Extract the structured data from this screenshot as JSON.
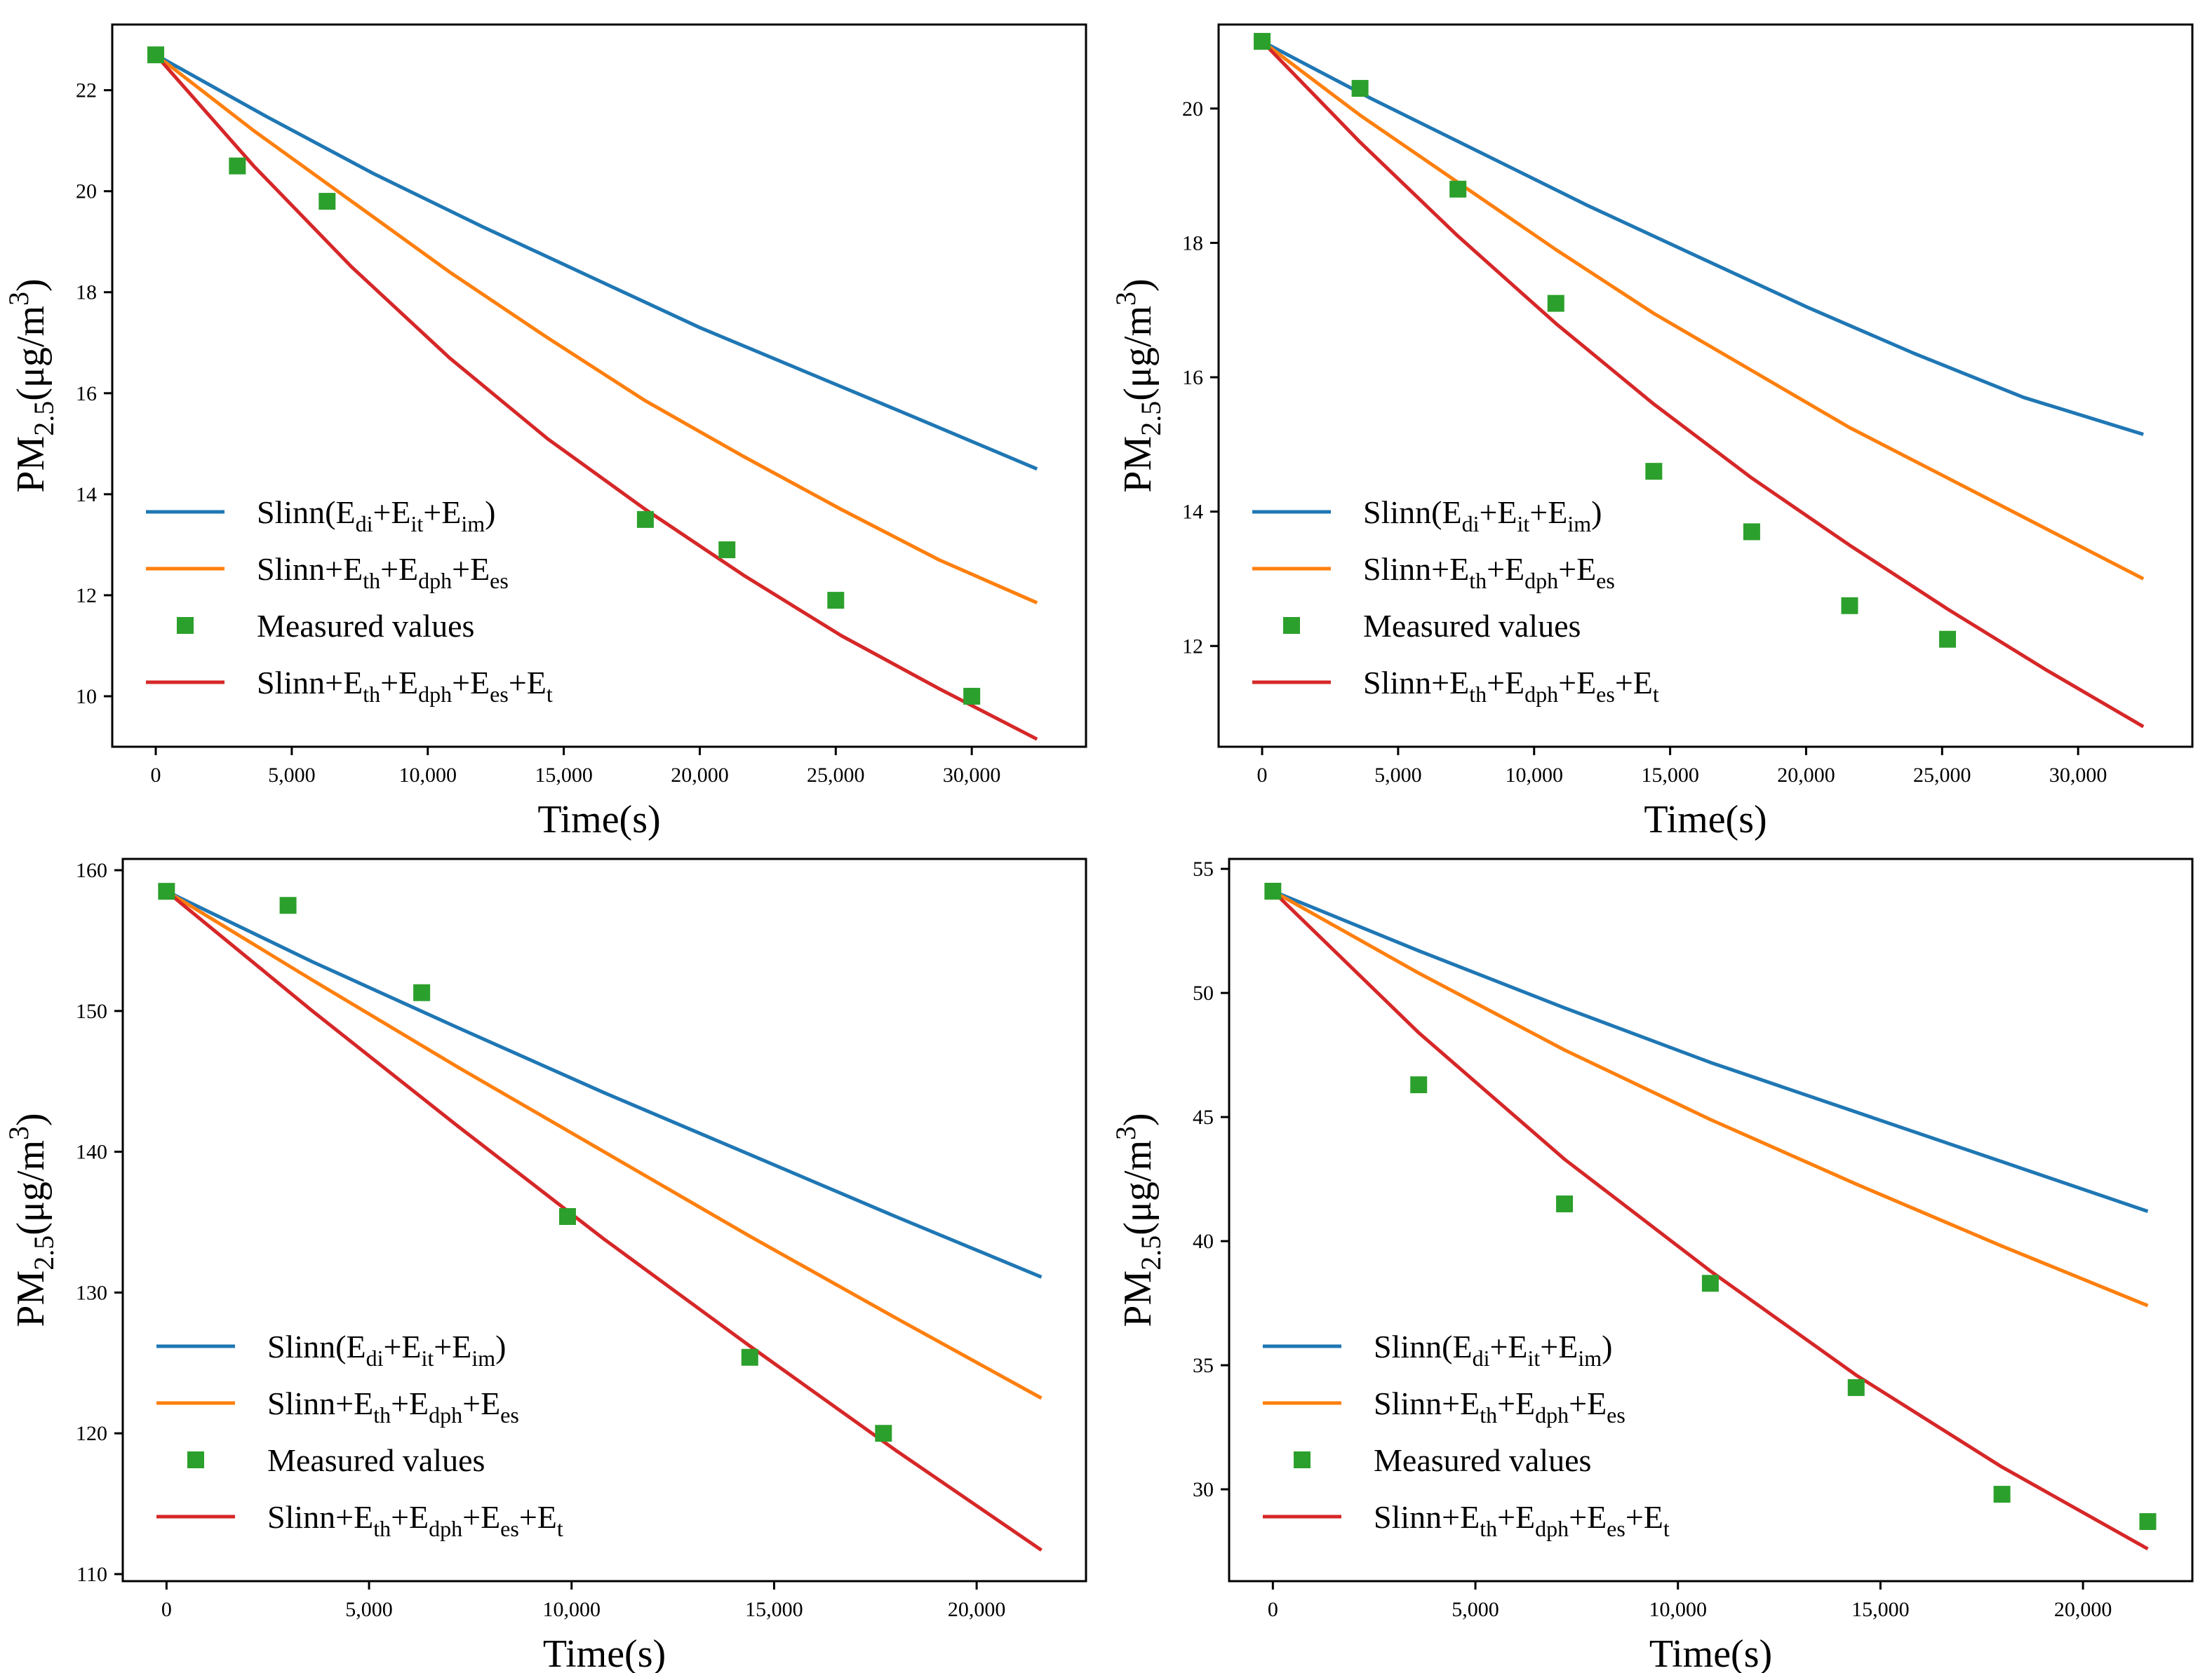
{
  "colors": {
    "blue": "#1f77b4",
    "orange": "#ff7f0e",
    "green": "#2ca02c",
    "red": "#d62728"
  },
  "legend": [
    {
      "base": "Slinn(E",
      "parts": [
        [
          "sub",
          "di"
        ],
        [
          "txt",
          "+E"
        ],
        [
          "sub",
          "it"
        ],
        [
          "txt",
          "+E"
        ],
        [
          "sub",
          "im"
        ],
        [
          "txt",
          ")"
        ]
      ],
      "color_key": "blue",
      "kind": "line"
    },
    {
      "base": "Slinn+E",
      "parts": [
        [
          "sub",
          "th"
        ],
        [
          "txt",
          "+E"
        ],
        [
          "sub",
          "dph"
        ],
        [
          "txt",
          "+E"
        ],
        [
          "sub",
          "es"
        ]
      ],
      "color_key": "orange",
      "kind": "line"
    },
    {
      "base": "Measured values",
      "parts": [],
      "color_key": "green",
      "kind": "marker"
    },
    {
      "base": "Slinn+E",
      "parts": [
        [
          "sub",
          "th"
        ],
        [
          "txt",
          "+E"
        ],
        [
          "sub",
          "dph"
        ],
        [
          "txt",
          "+E"
        ],
        [
          "sub",
          "es"
        ],
        [
          "txt",
          "+E"
        ],
        [
          "sub",
          "t"
        ]
      ],
      "color_key": "red",
      "kind": "line"
    }
  ],
  "chart_data": [
    {
      "type": "line",
      "xlabel": "Time(s)",
      "ylabel_base": "PM",
      "ylabel_sub": "2.5",
      "ylabel_unit": "(μg/m",
      "ylabel_sup": "3",
      "ylabel_close": ")",
      "xlim": [
        -1600,
        34200
      ],
      "ylim": [
        9.0,
        23.3
      ],
      "xticks": [
        0,
        5000,
        10000,
        15000,
        20000,
        25000,
        30000
      ],
      "xtick_labels": [
        "0",
        "5,000",
        "10,000",
        "15,000",
        "20,000",
        "25,000",
        "30,000"
      ],
      "yticks": [
        10,
        12,
        14,
        16,
        18,
        20,
        22
      ],
      "ytick_labels": [
        "10",
        "12",
        "14",
        "16",
        "18",
        "20",
        "22"
      ],
      "series": [
        {
          "name": "Slinn(Edi+Eit+Eim)",
          "color_key": "blue",
          "x": [
            0,
            4000,
            8000,
            12000,
            16000,
            20000,
            24000,
            28000,
            32400
          ],
          "y": [
            22.7,
            21.5,
            20.35,
            19.3,
            18.3,
            17.3,
            16.4,
            15.5,
            14.5
          ]
        },
        {
          "name": "Slinn+Eth+Edph+Ees",
          "color_key": "orange",
          "x": [
            0,
            3600,
            7200,
            10800,
            14400,
            18000,
            21600,
            25200,
            28800,
            32400
          ],
          "y": [
            22.7,
            21.2,
            19.8,
            18.4,
            17.1,
            15.85,
            14.75,
            13.7,
            12.7,
            11.85
          ]
        },
        {
          "name": "Slinn+Eth+Edph+Ees+Et",
          "color_key": "red",
          "x": [
            0,
            3600,
            7200,
            10800,
            14400,
            18000,
            21600,
            25200,
            28800,
            32400
          ],
          "y": [
            22.7,
            20.5,
            18.5,
            16.7,
            15.1,
            13.7,
            12.4,
            11.2,
            10.15,
            9.15
          ]
        }
      ],
      "measured": {
        "name": "Measured values",
        "color_key": "green",
        "x": [
          0,
          3000,
          6300,
          18000,
          21000,
          25000,
          30000
        ],
        "y": [
          22.7,
          20.5,
          19.8,
          13.5,
          12.9,
          11.9,
          10.0
        ]
      }
    },
    {
      "type": "line",
      "xlabel": "Time(s)",
      "ylabel_base": "PM",
      "ylabel_sub": "2.5",
      "ylabel_unit": "(μg/m",
      "ylabel_sup": "3",
      "ylabel_close": ")",
      "xlim": [
        -1600,
        34200
      ],
      "ylim": [
        10.5,
        21.25
      ],
      "xticks": [
        0,
        5000,
        10000,
        15000,
        20000,
        25000,
        30000
      ],
      "xtick_labels": [
        "0",
        "5,000",
        "10,000",
        "15,000",
        "20,000",
        "25,000",
        "30,000"
      ],
      "yticks": [
        12,
        14,
        16,
        18,
        20
      ],
      "ytick_labels": [
        "12",
        "14",
        "16",
        "18",
        "20"
      ],
      "series": [
        {
          "name": "Slinn(Edi+Eit+Eim)",
          "color_key": "blue",
          "x": [
            0,
            4000,
            8000,
            12000,
            16000,
            20000,
            24000,
            28000,
            32400
          ],
          "y": [
            21.0,
            20.15,
            19.35,
            18.55,
            17.8,
            17.05,
            16.35,
            15.7,
            15.15
          ]
        },
        {
          "name": "Slinn+Eth+Edph+Ees",
          "color_key": "orange",
          "x": [
            0,
            3600,
            7200,
            10800,
            14400,
            18000,
            21600,
            25200,
            28800,
            32400
          ],
          "y": [
            21.0,
            19.9,
            18.9,
            17.9,
            16.95,
            16.1,
            15.25,
            14.5,
            13.75,
            13.0
          ]
        },
        {
          "name": "Slinn+Eth+Edph+Ees+Et",
          "color_key": "red",
          "x": [
            0,
            3600,
            7200,
            10800,
            14400,
            18000,
            21600,
            25200,
            28800,
            32400
          ],
          "y": [
            21.0,
            19.5,
            18.1,
            16.8,
            15.6,
            14.5,
            13.5,
            12.55,
            11.65,
            10.8
          ]
        }
      ],
      "measured": {
        "name": "Measured values",
        "color_key": "green",
        "x": [
          0,
          3600,
          7200,
          10800,
          14400,
          18000,
          21600,
          25200
        ],
        "y": [
          21.0,
          20.3,
          18.8,
          17.1,
          14.6,
          13.7,
          12.6,
          12.1
        ]
      }
    },
    {
      "type": "line",
      "xlabel": "Time(s)",
      "ylabel_base": "PM",
      "ylabel_sub": "2.5",
      "ylabel_unit": "(μg/m",
      "ylabel_sup": "3",
      "ylabel_close": ")",
      "xlim": [
        -1080,
        22700
      ],
      "ylim": [
        109.5,
        160.8
      ],
      "xticks": [
        0,
        5000,
        10000,
        15000,
        20000
      ],
      "xtick_labels": [
        "0",
        "5,000",
        "10,000",
        "15,000",
        "20,000"
      ],
      "yticks": [
        110,
        120,
        130,
        140,
        150,
        160
      ],
      "ytick_labels": [
        "110",
        "120",
        "130",
        "140",
        "150",
        "160"
      ],
      "series": [
        {
          "name": "Slinn(Edi+Eit+Eim)",
          "color_key": "blue",
          "x": [
            0,
            3600,
            7200,
            10800,
            14400,
            18000,
            21600
          ],
          "y": [
            158.5,
            153.5,
            148.8,
            144.2,
            139.8,
            135.4,
            131.1
          ]
        },
        {
          "name": "Slinn+Eth+Edph+Ees",
          "color_key": "orange",
          "x": [
            0,
            3600,
            7200,
            10800,
            14400,
            18000,
            21600
          ],
          "y": [
            158.5,
            152.2,
            146.0,
            140.0,
            134.0,
            128.2,
            122.5
          ]
        },
        {
          "name": "Slinn+Eth+Edph+Ees+Et",
          "color_key": "red",
          "x": [
            0,
            3600,
            7200,
            10800,
            14400,
            18000,
            21600
          ],
          "y": [
            158.5,
            150.0,
            141.8,
            133.8,
            126.2,
            118.8,
            111.7
          ]
        }
      ],
      "measured": {
        "name": "Measured values",
        "color_key": "green",
        "x": [
          0,
          3000,
          6300,
          9900,
          14400,
          17700
        ],
        "y": [
          158.5,
          157.5,
          151.3,
          135.4,
          125.4,
          120.0
        ]
      }
    },
    {
      "type": "line",
      "xlabel": "Time(s)",
      "ylabel_base": "PM",
      "ylabel_sub": "2.5",
      "ylabel_unit": "(μg/m",
      "ylabel_sup": "3",
      "ylabel_close": ")",
      "xlim": [
        -1080,
        22700
      ],
      "ylim": [
        26.3,
        55.4
      ],
      "xticks": [
        0,
        5000,
        10000,
        15000,
        20000
      ],
      "xtick_labels": [
        "0",
        "5,000",
        "10,000",
        "15,000",
        "20,000"
      ],
      "yticks": [
        30,
        35,
        40,
        45,
        50,
        55
      ],
      "ytick_labels": [
        "30",
        "35",
        "40",
        "45",
        "50",
        "55"
      ],
      "series": [
        {
          "name": "Slinn(Edi+Eit+Eim)",
          "color_key": "blue",
          "x": [
            0,
            3600,
            7200,
            10800,
            14400,
            18000,
            21600
          ],
          "y": [
            54.1,
            51.7,
            49.4,
            47.2,
            45.2,
            43.2,
            41.2
          ]
        },
        {
          "name": "Slinn+Eth+Edph+Ees",
          "color_key": "orange",
          "x": [
            0,
            3600,
            7200,
            10800,
            14400,
            18000,
            21600
          ],
          "y": [
            54.1,
            50.8,
            47.7,
            44.9,
            42.3,
            39.8,
            37.4
          ]
        },
        {
          "name": "Slinn+Eth+Edph+Ees+Et",
          "color_key": "red",
          "x": [
            0,
            3600,
            7200,
            10800,
            14400,
            18000,
            21600
          ],
          "y": [
            54.1,
            48.4,
            43.3,
            38.8,
            34.6,
            30.9,
            27.6
          ]
        }
      ],
      "measured": {
        "name": "Measured values",
        "color_key": "green",
        "x": [
          0,
          3600,
          7200,
          10800,
          14400,
          18000,
          21600
        ],
        "y": [
          54.1,
          46.3,
          41.5,
          38.3,
          34.1,
          29.8,
          28.7
        ]
      }
    }
  ]
}
